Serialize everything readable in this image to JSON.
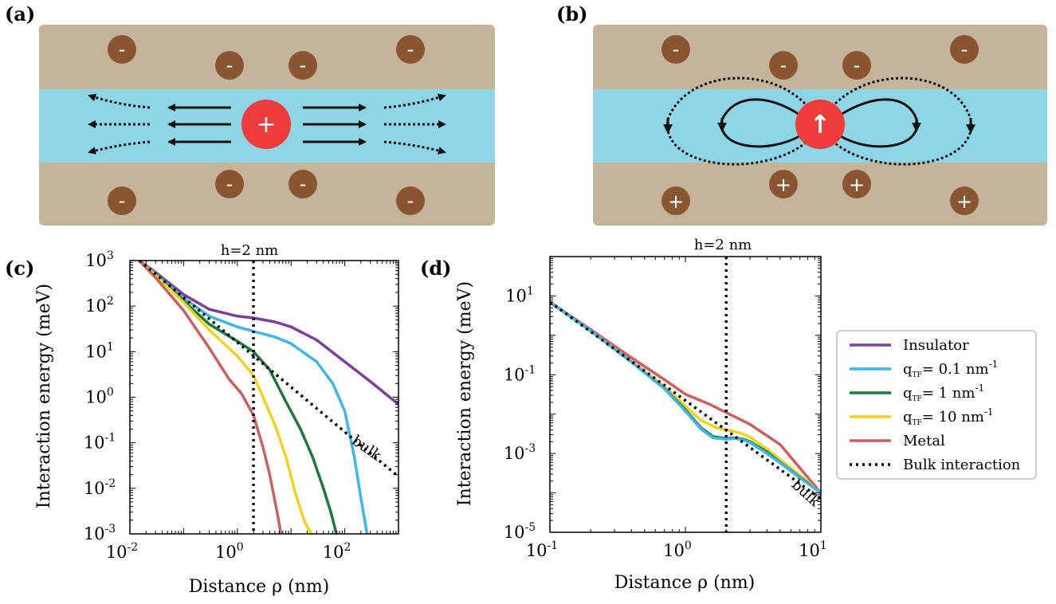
{
  "panels": {
    "a": {
      "label": "(a)",
      "center_symbol": "+",
      "top_ion_symbols": [
        "-",
        "-",
        "-",
        "-"
      ],
      "bottom_ion_symbols": [
        "-",
        "-",
        "-",
        "-"
      ]
    },
    "b": {
      "label": "(b)",
      "center_symbol": "↑",
      "top_ion_symbols": [
        "-",
        "-",
        "-",
        "-"
      ],
      "bottom_ion_symbols": [
        "+",
        "+",
        "+",
        "+"
      ]
    }
  },
  "colors": {
    "slab": "#c3b49a",
    "water": "#8ed5e6",
    "ion": "#8a5531",
    "center": "#ee3b3b"
  },
  "legend": {
    "entries": [
      {
        "label": "Insulator",
        "color": "#7b3f9e",
        "style": "solid"
      },
      {
        "label": "q",
        "sub": "TF",
        "rest": "= 0.1 nm",
        "sup": "-1",
        "color": "#3eb6e8",
        "style": "solid"
      },
      {
        "label": "q",
        "sub": "TF",
        "rest": "= 1 nm",
        "sup": "-1",
        "color": "#1b7a3b",
        "style": "solid"
      },
      {
        "label": "q",
        "sub": "TF",
        "rest": "= 10 nm",
        "sup": "-1",
        "color": "#f5d21a",
        "style": "solid"
      },
      {
        "label": "Metal",
        "color": "#cf5e5e",
        "style": "solid"
      },
      {
        "label": "Bulk interaction",
        "color": "#000000",
        "style": "dotted"
      }
    ]
  },
  "chart_data": [
    {
      "panel_label": "(c)",
      "type": "line",
      "xscale": "log",
      "yscale": "log",
      "xlim": [
        0.01,
        1000
      ],
      "ylim": [
        0.001,
        1000
      ],
      "xlabel": "Distance ρ (nm)",
      "ylabel": "Interaction energy (meV)",
      "x_ticks": [
        {
          "base": "10",
          "exp": "-2",
          "value": 0.01
        },
        {
          "base": "10",
          "exp": "0",
          "value": 1
        },
        {
          "base": "10",
          "exp": "2",
          "value": 100
        }
      ],
      "y_ticks": [
        {
          "base": "10",
          "exp": "-3",
          "value": 0.001
        },
        {
          "base": "10",
          "exp": "-2",
          "value": 0.01
        },
        {
          "base": "10",
          "exp": "-1",
          "value": 0.1
        },
        {
          "base": "10",
          "exp": "0",
          "value": 1
        },
        {
          "base": "10",
          "exp": "1",
          "value": 10
        },
        {
          "base": "10",
          "exp": "2",
          "value": 100
        },
        {
          "base": "10",
          "exp": "3",
          "value": 1000
        }
      ],
      "vline": {
        "x": 2,
        "label": "h=2 nm"
      },
      "annotation": {
        "text": "bulk",
        "x": 130,
        "y": 0.1
      },
      "series": [
        {
          "name": "Insulator",
          "color": "#7b3f9e",
          "style": "solid",
          "x": [
            0.015,
            0.03,
            0.1,
            0.3,
            1,
            2,
            5,
            10,
            30,
            100,
            300,
            1000
          ],
          "y": [
            1000,
            550,
            180,
            85,
            60,
            55,
            45,
            35,
            18,
            6,
            2.2,
            0.7
          ]
        },
        {
          "name": "qTF= 0.1 nm-1",
          "color": "#3eb6e8",
          "style": "solid",
          "x": [
            0.015,
            0.03,
            0.1,
            0.3,
            1,
            2,
            5,
            10,
            30,
            60,
            100,
            150,
            200,
            260
          ],
          "y": [
            1000,
            520,
            150,
            60,
            35,
            28,
            21,
            15,
            6,
            2,
            0.5,
            0.05,
            0.006,
            0.001
          ]
        },
        {
          "name": "qTF= 1 nm-1",
          "color": "#1b7a3b",
          "style": "solid",
          "x": [
            0.015,
            0.03,
            0.1,
            0.3,
            1,
            2,
            4,
            8,
            15,
            25,
            40,
            55,
            70
          ],
          "y": [
            1000,
            500,
            130,
            40,
            17,
            10,
            4,
            0.8,
            0.2,
            0.05,
            0.01,
            0.003,
            0.001
          ]
        },
        {
          "name": "qTF= 10 nm-1",
          "color": "#f5d21a",
          "style": "solid",
          "x": [
            0.015,
            0.03,
            0.1,
            0.3,
            1,
            2,
            3,
            5,
            8,
            12,
            18,
            24
          ],
          "y": [
            1000,
            480,
            120,
            30,
            8,
            3,
            1,
            0.25,
            0.05,
            0.008,
            0.0018,
            0.001
          ]
        },
        {
          "name": "Metal",
          "color": "#cf5e5e",
          "style": "solid",
          "x": [
            0.015,
            0.03,
            0.1,
            0.3,
            0.7,
            1.2,
            2,
            3,
            4,
            5.5,
            6.5
          ],
          "y": [
            1000,
            420,
            80,
            12,
            2.5,
            1.2,
            0.4,
            0.08,
            0.02,
            0.003,
            0.001
          ]
        },
        {
          "name": "Bulk interaction",
          "color": "#000000",
          "style": "dotted",
          "x": [
            0.015,
            1000
          ],
          "y": [
            1000,
            0.018
          ]
        }
      ]
    },
    {
      "panel_label": "(d)",
      "type": "line",
      "xscale": "log",
      "yscale": "log",
      "xlim": [
        0.1,
        10
      ],
      "ylim": [
        1e-05,
        100
      ],
      "xlabel": "Distance ρ (nm)",
      "ylabel": "Interaction energy (meV)",
      "x_ticks": [
        {
          "base": "10",
          "exp": "-1",
          "value": 0.1
        },
        {
          "base": "10",
          "exp": "0",
          "value": 1
        },
        {
          "base": "10",
          "exp": "1",
          "value": 10
        }
      ],
      "y_ticks": [
        {
          "base": "10",
          "exp": "-5",
          "value": 1e-05
        },
        {
          "base": "10",
          "exp": "-3",
          "value": 0.001
        },
        {
          "base": "10",
          "exp": "-1",
          "value": 0.1
        },
        {
          "base": "10",
          "exp": "1",
          "value": 10
        }
      ],
      "vline": {
        "x": 2,
        "label": "h=2 nm"
      },
      "annotation": {
        "text": "bulk",
        "x": 6,
        "y": 0.00015
      },
      "series": [
        {
          "name": "Metal",
          "color": "#cf5e5e",
          "style": "solid",
          "x": [
            0.1,
            0.2,
            0.4,
            0.7,
            1,
            1.5,
            2,
            3,
            5,
            10
          ],
          "y": [
            7,
            1.4,
            0.27,
            0.075,
            0.032,
            0.018,
            0.011,
            0.0055,
            0.0017,
            0.0001
          ]
        },
        {
          "name": "qTF= 10 nm-1",
          "color": "#f5d21a",
          "style": "solid",
          "x": [
            0.1,
            0.2,
            0.4,
            0.7,
            1,
            1.3,
            1.7,
            2,
            2.5,
            3,
            4,
            5,
            7,
            10
          ],
          "y": [
            7,
            1.3,
            0.22,
            0.05,
            0.016,
            0.007,
            0.0045,
            0.004,
            0.0034,
            0.0026,
            0.0013,
            0.0007,
            0.00028,
            0.0001
          ]
        },
        {
          "name": "qTF= 1 nm-1",
          "color": "#1b7a3b",
          "style": "solid",
          "x": [
            0.1,
            0.2,
            0.4,
            0.7,
            1,
            1.3,
            1.6,
            2,
            2.3,
            2.7,
            3,
            4,
            5,
            7,
            10
          ],
          "y": [
            7,
            1.3,
            0.21,
            0.045,
            0.013,
            0.0045,
            0.0027,
            0.0024,
            0.0025,
            0.0023,
            0.002,
            0.0011,
            0.0006,
            0.00025,
            0.0001
          ]
        },
        {
          "name": "qTF= 0.1 nm-1",
          "color": "#3eb6e8",
          "style": "solid",
          "x": [
            0.1,
            0.2,
            0.4,
            0.7,
            1,
            1.3,
            1.6,
            2,
            2.3,
            2.7,
            3,
            4,
            5,
            7,
            10
          ],
          "y": [
            7,
            1.3,
            0.21,
            0.044,
            0.012,
            0.0042,
            0.0025,
            0.0023,
            0.0024,
            0.0022,
            0.0019,
            0.001,
            0.00058,
            0.00024,
            0.0001
          ]
        },
        {
          "name": "Bulk interaction",
          "color": "#000000",
          "style": "dotted",
          "x": [
            0.1,
            10
          ],
          "y": [
            7,
            7e-05
          ]
        }
      ]
    }
  ]
}
